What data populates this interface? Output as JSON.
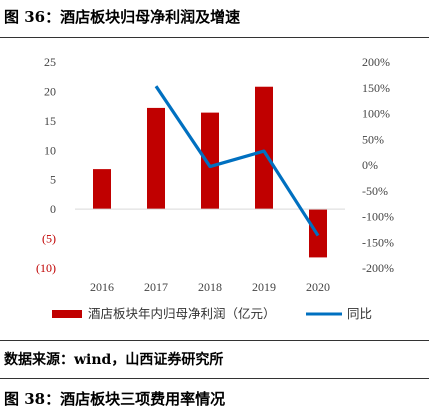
{
  "figure": {
    "title": "图 36：酒店板块归母净利润及增速",
    "source": "数据来源：wind，山西证券研究所",
    "next_title": "图 38：酒店板块三项费用率情况"
  },
  "chart_data": {
    "type": "bar+line",
    "categories": [
      "2016",
      "2017",
      "2018",
      "2019",
      "2020"
    ],
    "series": [
      {
        "name": "酒店板块年内归母净利润（亿元）",
        "type": "bar",
        "axis": "left",
        "color": "#c00000",
        "values": [
          6.8,
          17.2,
          16.4,
          20.8,
          -8.2
        ]
      },
      {
        "name": "同比",
        "type": "line",
        "axis": "right",
        "color": "#0070c0",
        "values": [
          null,
          153,
          -3,
          27,
          -137
        ]
      }
    ],
    "left_axis": {
      "ylim": [
        -10,
        25
      ],
      "ticks": [
        25,
        20,
        15,
        10,
        5,
        0,
        -5,
        -10
      ],
      "tick_labels": [
        "25",
        "20",
        "15",
        "10",
        "5",
        "0",
        "(5)",
        "(10)"
      ]
    },
    "right_axis": {
      "ylim": [
        -200,
        200
      ],
      "ticks": [
        200,
        150,
        100,
        50,
        0,
        -50,
        -100,
        -150,
        -200
      ],
      "tick_labels": [
        "200%",
        "150%",
        "100%",
        "50%",
        "0%",
        "-50%",
        "-100%",
        "-150%",
        "-200%"
      ]
    },
    "legend": {
      "placement": "bottom",
      "entries": [
        "酒店板块年内归母净利润（亿元）",
        "同比"
      ]
    },
    "grid": false,
    "colors": {
      "negative_tick": "#c00000",
      "tick": "#444444",
      "axis_line": "#d9d9d9"
    }
  }
}
